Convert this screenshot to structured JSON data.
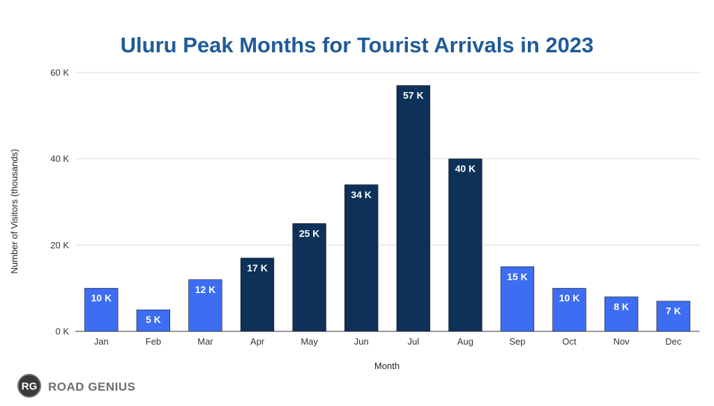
{
  "chart_data": {
    "type": "bar",
    "title": "Uluru Peak Months for Tourist Arrivals in 2023",
    "xlabel": "Month",
    "ylabel": "Number of Visitors (thousands)",
    "categories": [
      "Jan",
      "Feb",
      "Mar",
      "Apr",
      "May",
      "Jun",
      "Jul",
      "Aug",
      "Sep",
      "Oct",
      "Nov",
      "Dec"
    ],
    "values": [
      10,
      5,
      12,
      17,
      25,
      34,
      57,
      40,
      15,
      10,
      8,
      7
    ],
    "data_labels": [
      "10 K",
      "5 K",
      "12 K",
      "17 K",
      "25 K",
      "34 K",
      "57 K",
      "40 K",
      "15 K",
      "10 K",
      "8 K",
      "7 K"
    ],
    "peak": [
      false,
      false,
      false,
      true,
      true,
      true,
      true,
      true,
      false,
      false,
      false,
      false
    ],
    "ylim": [
      0,
      60
    ],
    "yticks": [
      0,
      20,
      40,
      60
    ],
    "ytick_labels": [
      "0 K",
      "20 K",
      "40 K",
      "60 K"
    ],
    "grid": true,
    "colors": {
      "peak": "#0d3159",
      "offpeak": "#3d6df2",
      "title": "#1f5b99"
    }
  },
  "branding": {
    "logo_mark": "RG",
    "logo_text": "ROAD GENIUS"
  }
}
